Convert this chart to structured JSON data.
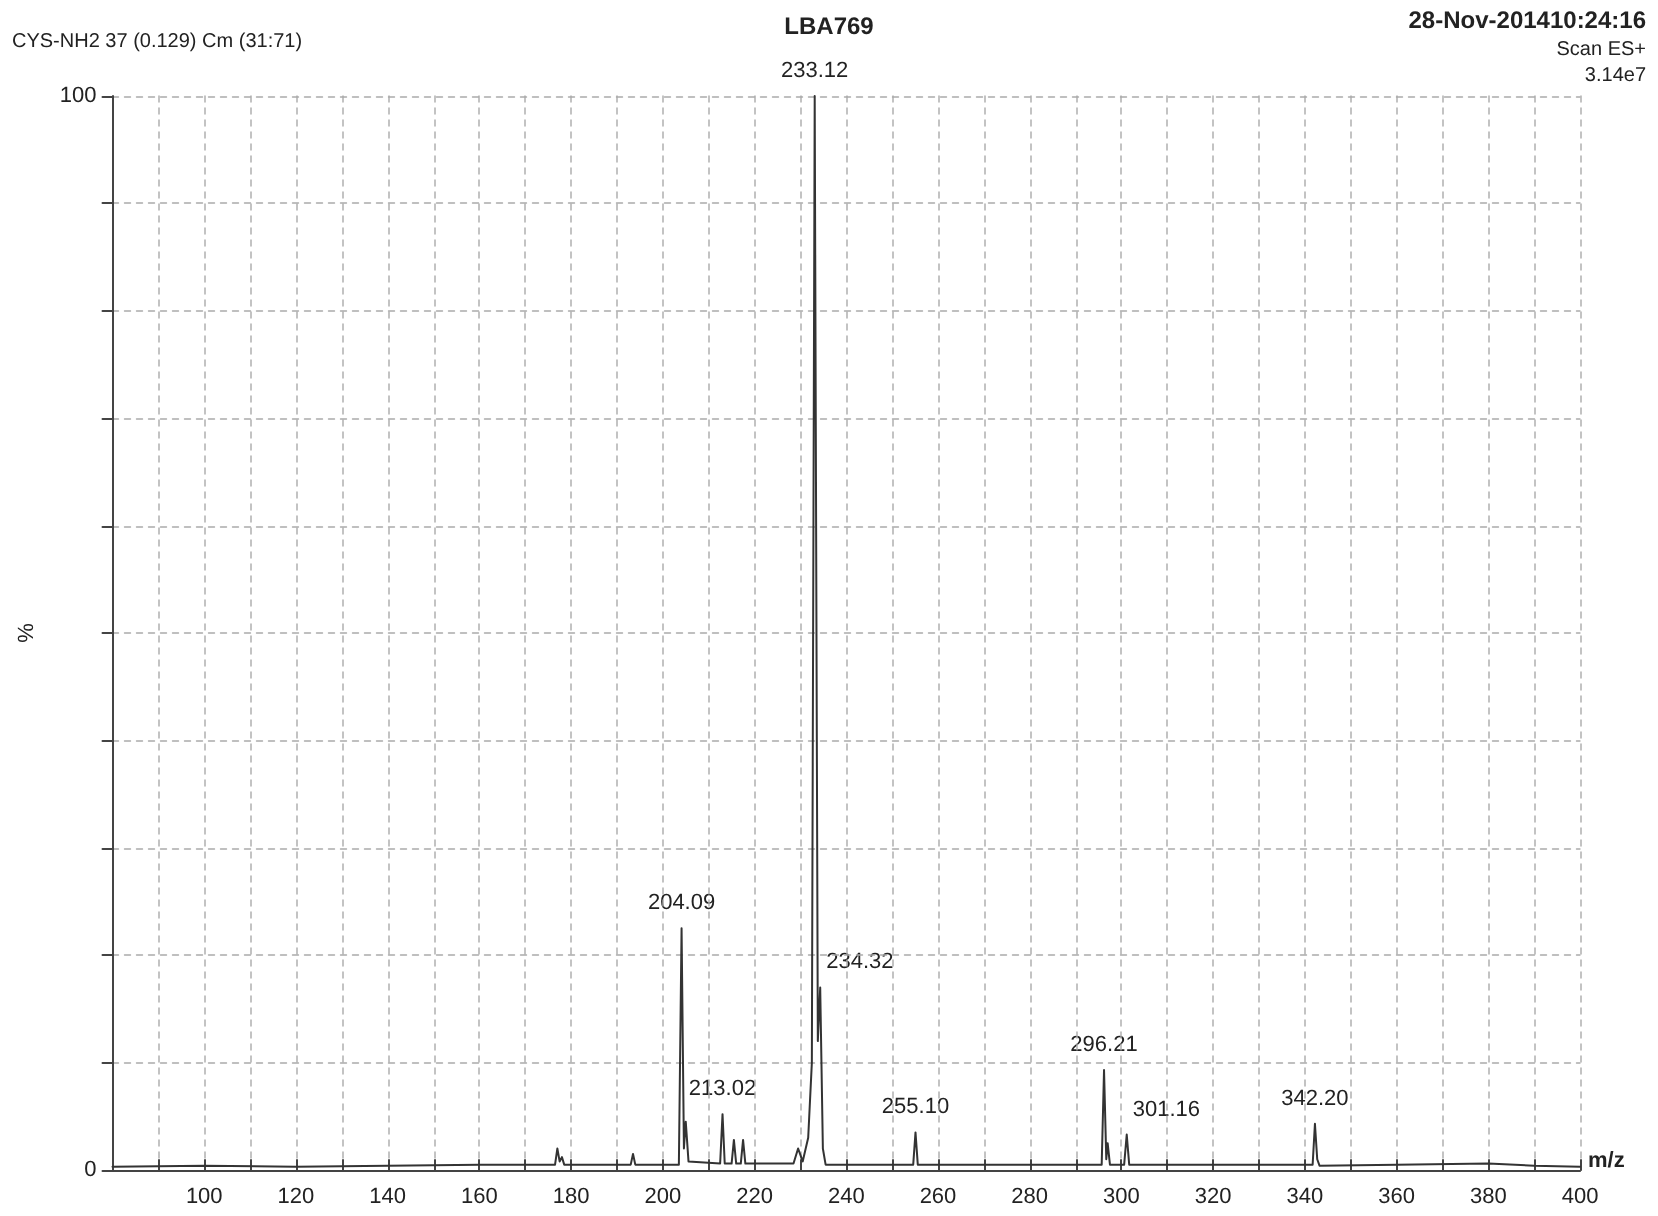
{
  "chart_data": {
    "type": "line",
    "title": "LBA769",
    "xlabel": "m/z",
    "ylabel": "%",
    "annotations": [
      "CYS-NH2 37 (0.129) Cm (31:71)",
      "28-Nov-201410:24:16",
      "Scan ES+",
      "3.14e7",
      {
        "text": "233.12",
        "x": 233.12,
        "y": 100
      },
      {
        "text": "204.09",
        "x": 204.09,
        "y": 22.5
      },
      {
        "text": "234.32",
        "x": 234.32,
        "y": 17
      },
      {
        "text": "213.02",
        "x": 213.02,
        "y": 5.2
      },
      {
        "text": "255.10",
        "x": 255.1,
        "y": 3.5
      },
      {
        "text": "296.21",
        "x": 296.21,
        "y": 9.3
      },
      {
        "text": "301.16",
        "x": 301.16,
        "y": 3.3
      },
      {
        "text": "342.20",
        "x": 342.2,
        "y": 4.3
      }
    ],
    "series": [
      {
        "color": "#333333",
        "x": [
          80,
          100,
          120,
          140,
          160,
          176.5,
          177,
          177.5,
          178,
          178.5,
          193,
          193.5,
          194,
          203.5,
          204.09,
          204.6,
          205,
          205.6,
          212.5,
          213.02,
          213.5,
          215,
          215.5,
          216,
          217,
          217.5,
          218,
          228.5,
          229.5,
          230.5,
          231.7,
          232.5,
          233.12,
          233.8,
          234.32,
          234.9,
          235.5,
          254.6,
          255.1,
          255.6,
          270,
          290,
          295.7,
          296.21,
          296.7,
          297,
          297.5,
          300.6,
          301.16,
          301.7,
          320,
          341.7,
          342.2,
          342.7,
          343.2,
          360,
          380,
          390,
          400
        ],
        "values": [
          0.3,
          0.4,
          0.3,
          0.4,
          0.5,
          0.5,
          2,
          0.8,
          1.2,
          0.5,
          0.5,
          1.5,
          0.5,
          0.5,
          22.5,
          2,
          4.5,
          0.8,
          0.6,
          5.2,
          0.6,
          0.6,
          2.8,
          0.6,
          0.6,
          2.8,
          0.6,
          0.6,
          2,
          0.8,
          3,
          10,
          100,
          12,
          17,
          2,
          0.5,
          0.5,
          3.5,
          0.5,
          0.5,
          0.5,
          0.5,
          9.3,
          1,
          2.5,
          0.5,
          0.5,
          3.3,
          0.5,
          0.5,
          0.5,
          4.3,
          1,
          0.4,
          0.5,
          0.6,
          0.4,
          0.3
        ]
      }
    ],
    "xlim": [
      80,
      400
    ],
    "xticks": [
      {
        "value": 90,
        "label": null
      },
      100,
      {
        "value": 110,
        "label": null
      },
      120,
      {
        "value": 130,
        "label": null
      },
      140,
      {
        "value": 150,
        "label": null
      },
      160,
      {
        "value": 170,
        "label": null
      },
      180,
      {
        "value": 190,
        "label": null
      },
      200,
      {
        "value": 210,
        "label": null
      },
      220,
      {
        "value": 230,
        "label": null
      },
      240,
      {
        "value": 250,
        "label": null
      },
      260,
      {
        "value": 270,
        "label": null
      },
      280,
      {
        "value": 290,
        "label": null
      },
      300,
      {
        "value": 310,
        "label": null
      },
      320,
      {
        "value": 330,
        "label": null
      },
      340,
      {
        "value": 350,
        "label": null
      },
      360,
      {
        "value": 370,
        "label": null
      },
      380,
      {
        "value": 390,
        "label": null
      },
      400
    ],
    "ylim": [
      0,
      100
    ],
    "yticks": [
      0,
      {
        "value": 10,
        "label": null
      },
      {
        "value": 20,
        "label": null
      },
      {
        "value": 30,
        "label": null
      },
      {
        "value": 40,
        "label": null
      },
      {
        "value": 50,
        "label": null
      },
      {
        "value": 60,
        "label": null
      },
      {
        "value": 70,
        "label": null
      },
      {
        "value": 80,
        "label": null
      },
      {
        "value": 90,
        "label": null
      },
      100
    ],
    "grid": true,
    "marker": "none",
    "line_style": "solid"
  }
}
